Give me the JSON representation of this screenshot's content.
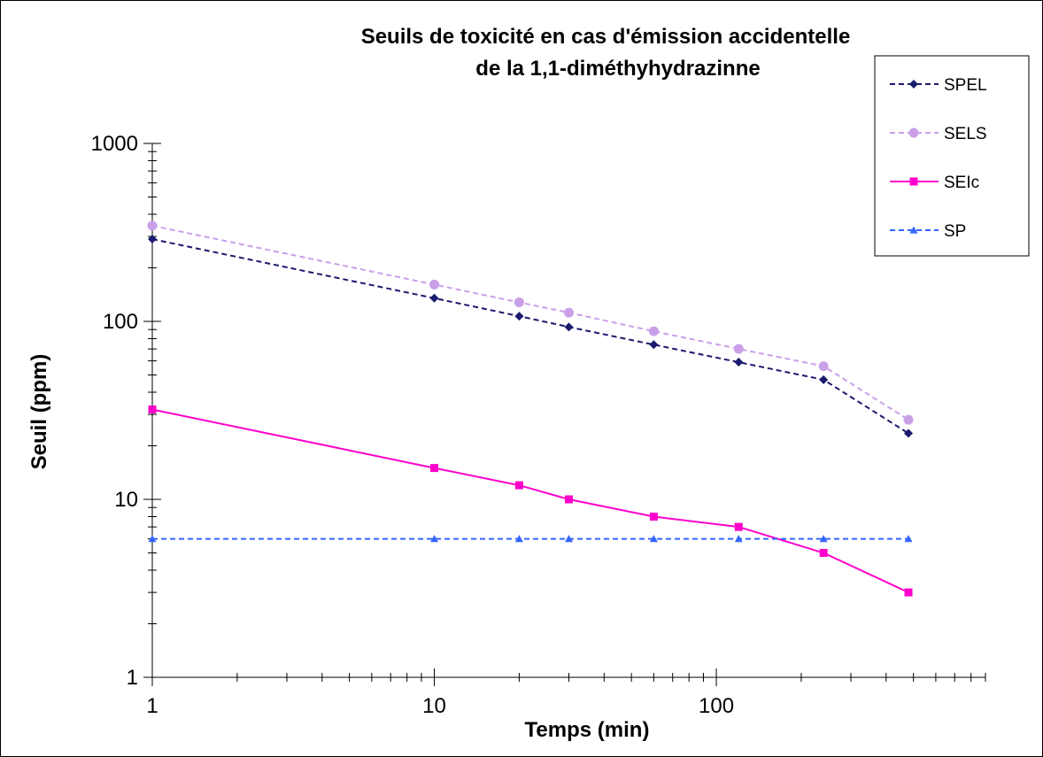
{
  "chart_data": {
    "type": "line",
    "title": [
      "Seuils de toxicité en cas d'émission accidentelle",
      "de la 1,1-diméthyhydrazinne"
    ],
    "xlabel": "Temps (min)",
    "ylabel": "Seuil (ppm)",
    "xscale": "log",
    "yscale": "log",
    "xlim": [
      1,
      900
    ],
    "ylim": [
      1,
      1000
    ],
    "x_tick_labels": [
      "1",
      "10",
      "100"
    ],
    "y_tick_labels": [
      "1",
      "10",
      "100",
      "1000"
    ],
    "grid": false,
    "legend_position": "top-right",
    "x": [
      1,
      10,
      20,
      30,
      60,
      120,
      240,
      480
    ],
    "series": [
      {
        "name": "SPEL",
        "color": "#1a1a6e",
        "dash": "dashed",
        "marker": "diamond",
        "values": [
          290,
          135,
          107,
          93,
          74,
          59,
          47,
          23.5
        ]
      },
      {
        "name": "SELS",
        "color": "#c9a0e8",
        "dash": "dashed",
        "marker": "circle",
        "values": [
          345,
          161,
          128,
          112,
          88,
          70,
          56,
          28
        ]
      },
      {
        "name": "SEIc",
        "color": "#ff00cc",
        "dash": "solid",
        "marker": "square",
        "values": [
          32,
          15,
          12,
          10,
          8,
          7,
          5,
          3
        ]
      },
      {
        "name": "SP",
        "color": "#3366ff",
        "dash": "dashed",
        "marker": "triangle",
        "values": [
          6,
          6,
          6,
          6,
          6,
          6,
          6,
          6
        ]
      }
    ]
  }
}
